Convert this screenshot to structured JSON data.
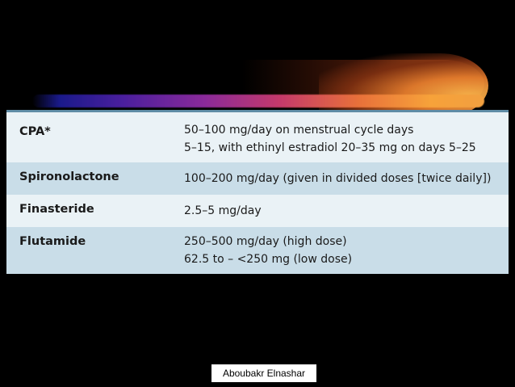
{
  "table": {
    "rows": [
      {
        "name": "CPA*",
        "doses": [
          "50–100 mg/day on menstrual cycle days",
          "5–15, with ethinyl estradiol 20–35 mg on days 5–25"
        ]
      },
      {
        "name": "Spironolactone",
        "doses": [
          "100–200 mg/day (given in divided doses [twice daily])"
        ]
      },
      {
        "name": "Finasteride",
        "doses": [
          "2.5–5 mg/day"
        ]
      },
      {
        "name": "Flutamide",
        "doses": [
          "250–500 mg/day (high dose)",
          "62.5 to – <250 mg (low dose)"
        ]
      }
    ]
  },
  "footer": {
    "author": "Aboubakr Elnashar"
  },
  "colors": {
    "background": "#000000",
    "row_light": "#eaf2f6",
    "row_shaded": "#c9dde8",
    "table_top_border": "#5f8ca6"
  }
}
